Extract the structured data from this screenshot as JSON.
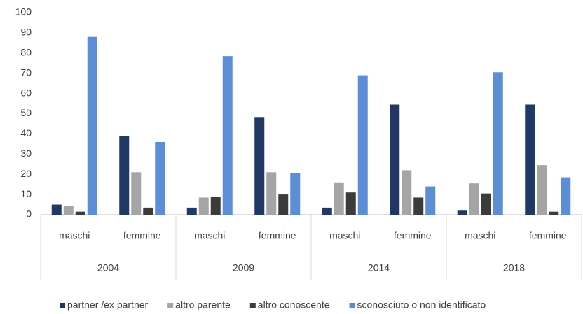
{
  "chart_data": {
    "type": "bar",
    "categories": [
      "maschi",
      "femmine",
      "maschi",
      "femmine",
      "maschi",
      "femmine",
      "maschi",
      "femmine"
    ],
    "group_labels": [
      "2004",
      "2009",
      "2014",
      "2018"
    ],
    "series": [
      {
        "name": "partner /ex partner",
        "color": "#203864",
        "values": [
          5,
          39,
          3.5,
          48,
          3.5,
          54.5,
          2,
          54.5
        ]
      },
      {
        "name": "altro parente",
        "color": "#a5a5a5",
        "values": [
          4.5,
          21,
          8.5,
          21,
          16,
          22,
          15.5,
          24.5
        ]
      },
      {
        "name": "altro conoscente",
        "color": "#3b3b3b",
        "values": [
          1.5,
          3.5,
          9,
          10,
          11,
          8.5,
          10.5,
          1.5
        ]
      },
      {
        "name": "sconosciuto o non identificato",
        "color": "#5b8ed6",
        "values": [
          88,
          36,
          78.5,
          20.5,
          69,
          14,
          70.5,
          18.5
        ]
      }
    ],
    "ylim": [
      0,
      100
    ],
    "yticks": [
      0,
      10,
      20,
      30,
      40,
      50,
      60,
      70,
      80,
      90,
      100
    ],
    "grid": false
  }
}
